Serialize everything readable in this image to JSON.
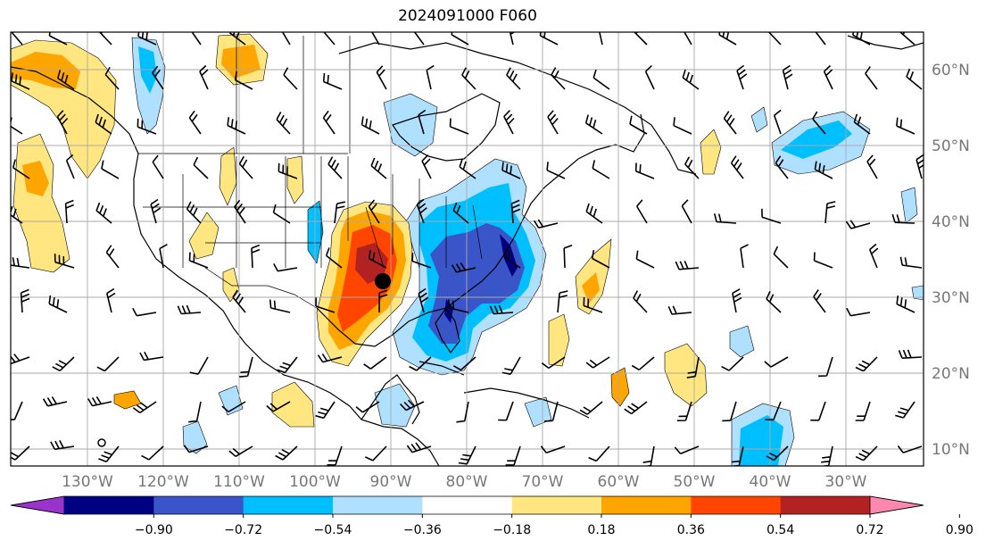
{
  "title": "2024091000 F060",
  "map": {
    "projection": "plate-carree",
    "lon_range": [
      -140,
      -15
    ],
    "lat_range": [
      7,
      65
    ],
    "gridlines": true,
    "lon_labels": [
      "130°W",
      "120°W",
      "110°W",
      "100°W",
      "90°W",
      "80°W",
      "70°W",
      "60°W",
      "50°W",
      "40°W",
      "30°W"
    ],
    "lat_labels": [
      "60°N",
      "50°N",
      "40°N",
      "30°N",
      "20°N",
      "10°N"
    ],
    "marker": "storm-center-dot"
  },
  "colorbar": {
    "tick_labels": [
      "−0.90",
      "−0.72",
      "−0.54",
      "−0.36",
      "−0.18",
      "0.18",
      "0.36",
      "0.54",
      "0.72",
      "0.90"
    ],
    "colors": [
      "#9933cc",
      "#000080",
      "#3a55c8",
      "#00bfff",
      "#b0e0ff",
      "#ffffff",
      "#ffe680",
      "#ffa500",
      "#ff4500",
      "#b22222",
      "#ff88b0"
    ],
    "extend": "both"
  },
  "field_colors": {
    "neg_weak": "#b0e0ff",
    "neg_mod": "#00bfff",
    "neg_strong": "#3a55c8",
    "neg_max": "#000080",
    "pos_weak": "#ffe680",
    "pos_mod": "#ffa500",
    "pos_strong": "#ff4500",
    "pos_max": "#b22222"
  }
}
